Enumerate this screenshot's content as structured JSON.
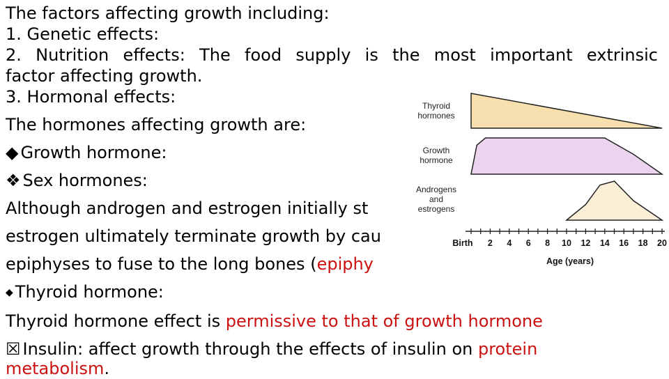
{
  "text": {
    "l1": "The factors affecting growth including:",
    "l2": "1. Genetic effects:",
    "l3": "2. Nutrition effects: The food supply is the most important extrinsic",
    "l4": "factor affecting growth.",
    "l5": "3. Hormonal effects:",
    "l6": "The hormones affecting growth are:",
    "l7_bullet": "◆",
    "l7": "Growth hormone:",
    "l8_bullet": "❖",
    "l8": "Sex hormones:",
    "l9": "Although androgen and estrogen initially st",
    "l10": "estrogen ultimately terminate growth by cau",
    "l11a": "epiphyses to fuse to the long bones (",
    "l11b": "epiphy",
    "l12_bullet": "◆",
    "l12": "Thyroid hormone:",
    "l13a": "Thyroid hormone effect is ",
    "l13b": "permissive to that of growth hormone",
    "l14_bullet": "☒",
    "l14a": "Insulin: affect growth through the effects of insulin on ",
    "l14b": "protein",
    "l15a": "metabolism",
    "l15b": "."
  },
  "chart_data": {
    "type": "area",
    "series": [
      {
        "name": "Thyroid hormones",
        "x": [
          0,
          20
        ],
        "y": [
          1.0,
          0.0
        ],
        "color": "#f7dfb0"
      },
      {
        "name": "Growth hormone",
        "x": [
          0,
          0.6,
          1.5,
          14,
          17,
          20
        ],
        "y": [
          0.0,
          0.8,
          1.0,
          1.0,
          0.55,
          0.0
        ],
        "color": "#ecd3ee"
      },
      {
        "name": "Androgens and estrogens",
        "x": [
          10,
          12,
          13.5,
          15,
          17,
          20
        ],
        "y": [
          0.0,
          0.4,
          0.9,
          1.0,
          0.5,
          0.0
        ],
        "color": "#faefd6"
      }
    ],
    "series_labels": [
      [
        "Thyroid",
        "hormones"
      ],
      [
        "Growth",
        "hormone"
      ],
      [
        "Androgens",
        "and",
        "estrogens"
      ]
    ],
    "x_ticks": [
      "Birth",
      "2",
      "4",
      "6",
      "8",
      "10",
      "12",
      "14",
      "16",
      "18",
      "20"
    ],
    "x_tick_values": [
      0,
      2,
      4,
      6,
      8,
      10,
      12,
      14,
      16,
      18,
      20
    ],
    "xlabel": "Age (years)",
    "xlim": [
      0,
      20
    ]
  }
}
